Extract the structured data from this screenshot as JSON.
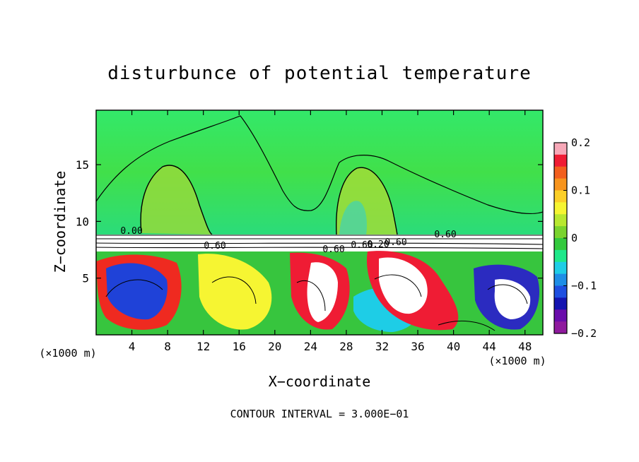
{
  "chart_data": {
    "type": "heatmap",
    "title": "disturbunce of potential temperature",
    "xlabel": "X−coordinate",
    "ylabel": "Z−coordinate",
    "x_unit": "(×1000 m)",
    "y_unit": "(×1000 m)",
    "footer": "CONTOUR INTERVAL = 3.000E−01",
    "xlim": [
      0,
      50
    ],
    "ylim": [
      0,
      19.8
    ],
    "x_ticks": [
      4,
      8,
      12,
      16,
      20,
      24,
      28,
      32,
      36,
      40,
      44,
      48
    ],
    "y_ticks": [
      5,
      10,
      15
    ],
    "colorbar": {
      "range": [
        -0.2,
        0.2
      ],
      "tick_values": [
        0.2,
        0.1,
        0,
        -0.1,
        -0.2
      ],
      "tick_labels": [
        "0.2",
        "0.1",
        "0",
        "−0.1",
        "−0.2"
      ],
      "colors": [
        "#f7a8b8",
        "#ef1c34",
        "#f25f1e",
        "#f7941d",
        "#fbcf28",
        "#f6f532",
        "#b8e830",
        "#7ad32e",
        "#33c93d",
        "#1ee88a",
        "#1ecde6",
        "#1e8ee6",
        "#1e4fe0",
        "#1414b0",
        "#6a0dab",
        "#8f1a9e"
      ]
    },
    "contour_labels": [
      "0.00",
      "0.60",
      "0.60",
      "0.60",
      "0.60",
      "0.20",
      "0.60"
    ],
    "regions": {
      "upper_layer_anomaly": 0.02,
      "interface_height": 8.8,
      "lower_layer_range": [
        -0.2,
        0.2
      ]
    }
  }
}
